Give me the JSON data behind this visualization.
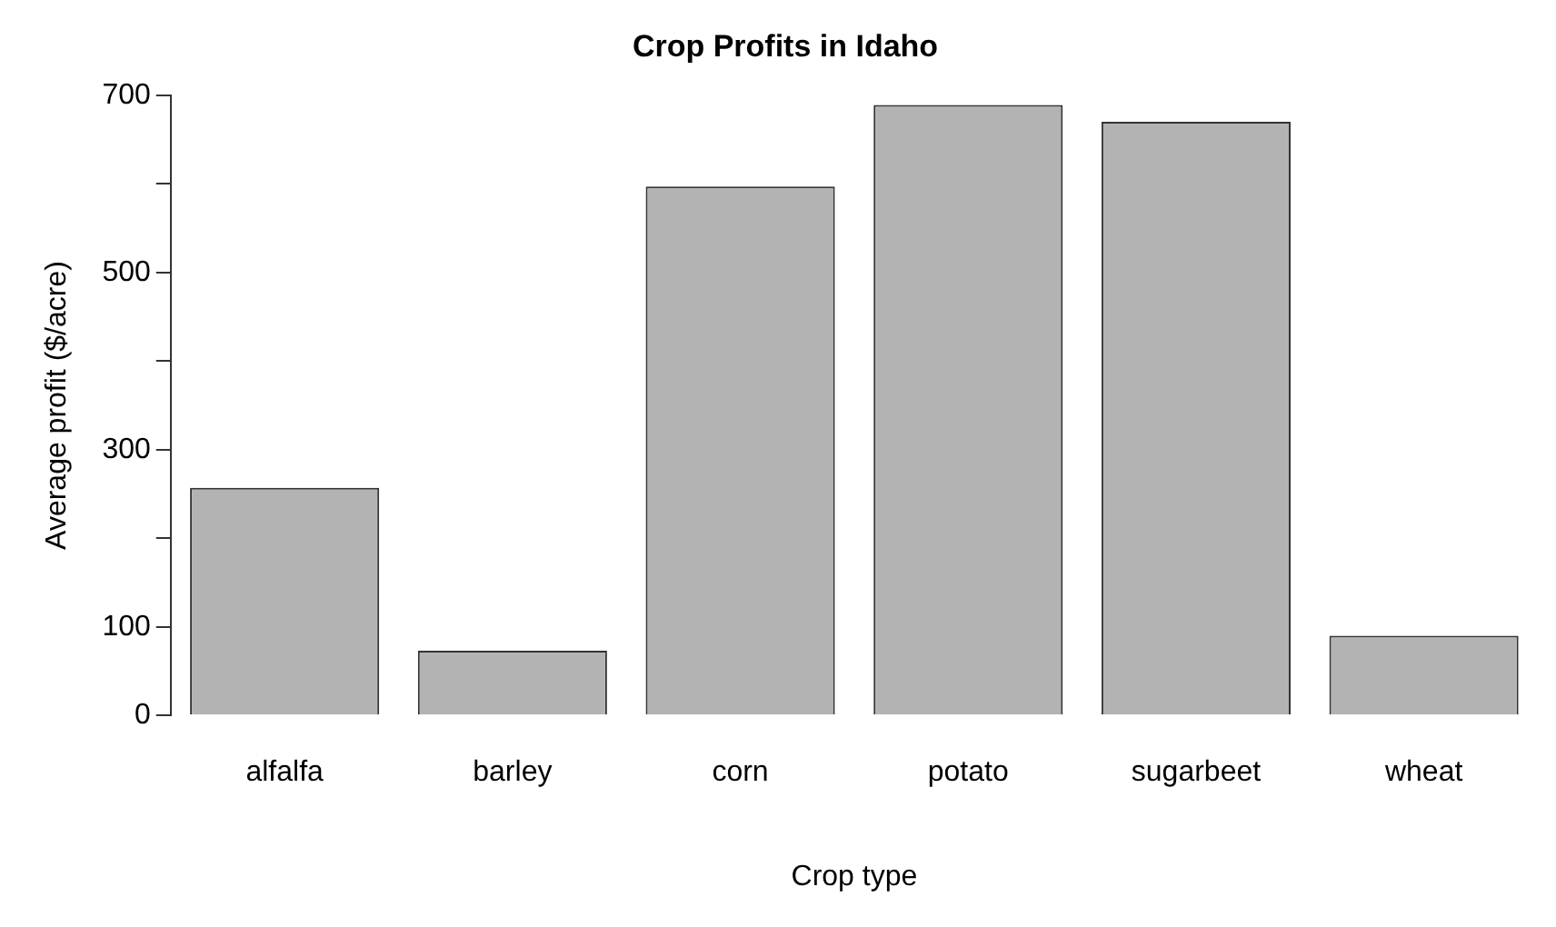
{
  "chart_data": {
    "type": "bar",
    "title": "Crop Profits in Idaho",
    "xlabel": "Crop type",
    "ylabel": "Average profit ($/acre)",
    "categories": [
      "alfalfa",
      "barley",
      "corn",
      "potato",
      "sugarbeet",
      "wheat"
    ],
    "values": [
      257,
      73,
      597,
      689,
      670,
      90
    ],
    "color": "#b3b3b3",
    "ylim": [
      0,
      700
    ],
    "yticks": [
      0,
      100,
      {
        "value": 200,
        "label": null
      },
      300,
      {
        "value": 400,
        "label": null
      },
      500,
      {
        "value": 600,
        "label": null
      },
      700
    ],
    "grid": false,
    "legend": false
  }
}
